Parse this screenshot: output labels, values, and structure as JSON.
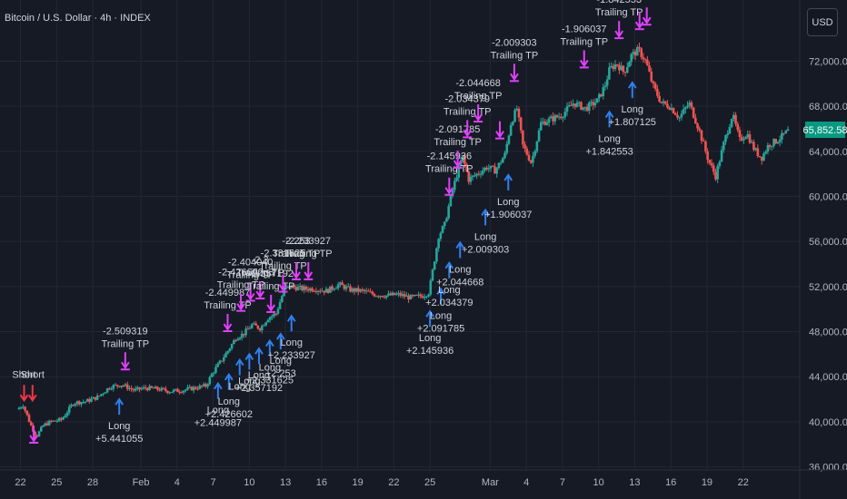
{
  "header": {
    "title": "Bitcoin / U.S. Dollar · 4h · INDEX",
    "currency_label": "USD"
  },
  "colors": {
    "background": "#161a25",
    "grid": "#232734",
    "up_candle": "#26a69a",
    "down_candle": "#ef5350",
    "long_arrow": "#2f80ed",
    "short_arrow": "#f23645",
    "exit_marker": "#e040fb",
    "price_tag": "#089981"
  },
  "chart_data": {
    "type": "candlestick",
    "symbol": "Bitcoin / U.S. Dollar",
    "interval": "4h",
    "grid": true,
    "y_axis": {
      "position": "right",
      "ylim": [
        35000,
        75500
      ],
      "ticks": [
        "36,000.00",
        "40,000.00",
        "44,000.00",
        "48,000.00",
        "52,000.00",
        "56,000.00",
        "60,000.00",
        "64,000.00",
        "68,000.00",
        "72,000.00"
      ]
    },
    "current_price": "65,852.58",
    "x_axis": {
      "ticks": [
        "22",
        "25",
        "28",
        "Feb",
        "4",
        "7",
        "10",
        "13",
        "16",
        "19",
        "22",
        "25",
        "Mar",
        "4",
        "7",
        "10",
        "13",
        "16",
        "19",
        "22"
      ]
    },
    "price_path": [
      {
        "day": 21.8,
        "price": 41100
      },
      {
        "day": 22.3,
        "price": 41500
      },
      {
        "day": 22.9,
        "price": 39800
      },
      {
        "day": 23.4,
        "price": 38700
      },
      {
        "day": 24.0,
        "price": 39700
      },
      {
        "day": 24.6,
        "price": 40000
      },
      {
        "day": 25.5,
        "price": 40200
      },
      {
        "day": 26.5,
        "price": 41700
      },
      {
        "day": 27.5,
        "price": 41800
      },
      {
        "day": 28.5,
        "price": 42200
      },
      {
        "day": 29.5,
        "price": 43100
      },
      {
        "day": 30.5,
        "price": 43300
      },
      {
        "day": 31.5,
        "price": 42800
      },
      {
        "day": 32.5,
        "price": 43000
      },
      {
        "day": 33.5,
        "price": 42900
      },
      {
        "day": 34.5,
        "price": 42700
      },
      {
        "day": 35.5,
        "price": 42800
      },
      {
        "day": 36.5,
        "price": 43000
      },
      {
        "day": 37.5,
        "price": 43200
      },
      {
        "day": 38.0,
        "price": 44300
      },
      {
        "day": 38.6,
        "price": 45200
      },
      {
        "day": 39.3,
        "price": 46300
      },
      {
        "day": 40.0,
        "price": 47500
      },
      {
        "day": 40.6,
        "price": 47800
      },
      {
        "day": 41.3,
        "price": 48600
      },
      {
        "day": 42.0,
        "price": 48300
      },
      {
        "day": 42.6,
        "price": 49200
      },
      {
        "day": 43.3,
        "price": 49600
      },
      {
        "day": 44.0,
        "price": 51800
      },
      {
        "day": 44.6,
        "price": 52000
      },
      {
        "day": 45.5,
        "price": 51800
      },
      {
        "day": 46.5,
        "price": 51800
      },
      {
        "day": 47.5,
        "price": 51600
      },
      {
        "day": 48.5,
        "price": 52200
      },
      {
        "day": 49.5,
        "price": 51700
      },
      {
        "day": 50.5,
        "price": 51600
      },
      {
        "day": 51.5,
        "price": 51300
      },
      {
        "day": 52.5,
        "price": 51200
      },
      {
        "day": 53.5,
        "price": 51300
      },
      {
        "day": 54.5,
        "price": 51000
      },
      {
        "day": 55.5,
        "price": 51200
      },
      {
        "day": 56.0,
        "price": 51500
      },
      {
        "day": 56.4,
        "price": 54000
      },
      {
        "day": 56.8,
        "price": 56500
      },
      {
        "day": 57.3,
        "price": 57500
      },
      {
        "day": 57.8,
        "price": 59900
      },
      {
        "day": 58.3,
        "price": 61900
      },
      {
        "day": 58.8,
        "price": 63500
      },
      {
        "day": 59.3,
        "price": 61500
      },
      {
        "day": 60.0,
        "price": 62000
      },
      {
        "day": 60.8,
        "price": 62600
      },
      {
        "day": 61.5,
        "price": 62300
      },
      {
        "day": 62.3,
        "price": 63700
      },
      {
        "day": 62.8,
        "price": 66500
      },
      {
        "day": 63.3,
        "price": 67800
      },
      {
        "day": 63.8,
        "price": 64500
      },
      {
        "day": 64.5,
        "price": 63000
      },
      {
        "day": 65.3,
        "price": 66500
      },
      {
        "day": 66.0,
        "price": 66800
      },
      {
        "day": 67.0,
        "price": 67200
      },
      {
        "day": 68.0,
        "price": 68300
      },
      {
        "day": 69.0,
        "price": 67800
      },
      {
        "day": 70.0,
        "price": 68500
      },
      {
        "day": 70.6,
        "price": 69800
      },
      {
        "day": 71.0,
        "price": 71300
      },
      {
        "day": 71.6,
        "price": 71800
      },
      {
        "day": 72.2,
        "price": 71000
      },
      {
        "day": 72.8,
        "price": 72500
      },
      {
        "day": 73.4,
        "price": 73000
      },
      {
        "day": 74.0,
        "price": 72000
      },
      {
        "day": 74.6,
        "price": 69800
      },
      {
        "day": 75.3,
        "price": 68300
      },
      {
        "day": 76.0,
        "price": 68000
      },
      {
        "day": 76.8,
        "price": 67000
      },
      {
        "day": 77.6,
        "price": 68300
      },
      {
        "day": 78.4,
        "price": 66000
      },
      {
        "day": 79.2,
        "price": 63200
      },
      {
        "day": 79.8,
        "price": 61800
      },
      {
        "day": 80.5,
        "price": 64800
      },
      {
        "day": 81.2,
        "price": 67300
      },
      {
        "day": 81.8,
        "price": 65000
      },
      {
        "day": 82.4,
        "price": 65600
      },
      {
        "day": 83.0,
        "price": 64200
      },
      {
        "day": 83.6,
        "price": 63400
      },
      {
        "day": 84.2,
        "price": 64600
      },
      {
        "day": 84.8,
        "price": 64900
      },
      {
        "day": 85.4,
        "price": 65400
      },
      {
        "day": 85.8,
        "price": 65800
      }
    ],
    "signals": [
      {
        "type": "short",
        "day": 22.3,
        "price": 41500,
        "label": "Short",
        "line2": ""
      },
      {
        "type": "short",
        "day": 23.0,
        "price": 41500,
        "label": "Short",
        "line2": ""
      },
      {
        "type": "exit",
        "day": 23.1,
        "price": 37900,
        "label": "",
        "line2": ""
      },
      {
        "type": "long",
        "day": 30.2,
        "price": 42400,
        "label": "Long",
        "line2": "+5.441055"
      },
      {
        "type": "exit",
        "day": 30.7,
        "price": 44400,
        "label": "-2.509319",
        "line2": "Trailing TP"
      },
      {
        "type": "long",
        "day": 38.4,
        "price": 43800,
        "label": "Long",
        "line2": "+2.449987"
      },
      {
        "type": "long",
        "day": 39.3,
        "price": 44600,
        "label": "Long",
        "line2": "+2.426602"
      },
      {
        "type": "long",
        "day": 40.2,
        "price": 45900,
        "label": "Long",
        "line2": ""
      },
      {
        "type": "long",
        "day": 41.0,
        "price": 46400,
        "label": "Long",
        "line2": ""
      },
      {
        "type": "long",
        "day": 41.8,
        "price": 46900,
        "label": "Long",
        "line2": "+2.357192"
      },
      {
        "type": "long",
        "day": 42.7,
        "price": 47600,
        "label": "Long",
        "line2": "+2.331625"
      },
      {
        "type": "long",
        "day": 43.6,
        "price": 48200,
        "label": "Long",
        "line2": "+2.253"
      },
      {
        "type": "long",
        "day": 44.5,
        "price": 49800,
        "label": "Long",
        "line2": "+2.233927"
      },
      {
        "type": "exit",
        "day": 39.2,
        "price": 47800,
        "label": "-2.449987",
        "line2": "Trailing TP"
      },
      {
        "type": "exit",
        "day": 40.3,
        "price": 49600,
        "label": "-2.426602",
        "line2": "Trailing TP"
      },
      {
        "type": "exit",
        "day": 41.1,
        "price": 50500,
        "label": "-2.404040",
        "line2": "Trailing TP"
      },
      {
        "type": "exit",
        "day": 41.9,
        "price": 50700,
        "label": "-2.3",
        "line2": "Trailing TP"
      },
      {
        "type": "exit",
        "day": 42.8,
        "price": 49500,
        "label": "-2.357192",
        "line2": "Trailing TP"
      },
      {
        "type": "exit",
        "day": 43.8,
        "price": 51300,
        "label": "-2.331625",
        "line2": "Trailing TP"
      },
      {
        "type": "exit",
        "day": 44.9,
        "price": 52400,
        "label": "-2.253",
        "line2": "Trailing TP"
      },
      {
        "type": "exit",
        "day": 45.9,
        "price": 52400,
        "label": "-2.233927",
        "line2": "Trailing TP"
      },
      {
        "type": "long",
        "day": 56.0,
        "price": 50200,
        "label": "Long",
        "line2": "+2.145936"
      },
      {
        "type": "long",
        "day": 56.9,
        "price": 52200,
        "label": "Long",
        "line2": "+2.091785"
      },
      {
        "type": "long",
        "day": 57.6,
        "price": 54500,
        "label": "Long",
        "line2": "+2.034379"
      },
      {
        "type": "long",
        "day": 58.5,
        "price": 56300,
        "label": "Long",
        "line2": "+2.044668"
      },
      {
        "type": "long",
        "day": 60.6,
        "price": 59200,
        "label": "Long",
        "line2": "+2.009303"
      },
      {
        "type": "long",
        "day": 62.5,
        "price": 62300,
        "label": "Long",
        "line2": "+1.906037"
      },
      {
        "type": "exit",
        "day": 57.6,
        "price": 59900,
        "label": "-2.145936",
        "line2": "Trailing TP"
      },
      {
        "type": "exit",
        "day": 58.3,
        "price": 62300,
        "label": "-2.091785",
        "line2": "Trailing TP"
      },
      {
        "type": "exit",
        "day": 59.1,
        "price": 65000,
        "label": "-2.034379",
        "line2": "Trailing TP"
      },
      {
        "type": "exit",
        "day": 60.0,
        "price": 66400,
        "label": "-2.044668",
        "line2": "Trailing TP"
      },
      {
        "type": "exit",
        "day": 61.8,
        "price": 64900,
        "label": "",
        "line2": ""
      },
      {
        "type": "exit",
        "day": 63.0,
        "price": 70000,
        "label": "-2.009303",
        "line2": "Trailing TP"
      },
      {
        "type": "long",
        "day": 70.9,
        "price": 67900,
        "label": "Long",
        "line2": "+1.842553"
      },
      {
        "type": "long",
        "day": 72.8,
        "price": 70500,
        "label": "Long",
        "line2": "+1.807125"
      },
      {
        "type": "exit",
        "day": 68.8,
        "price": 71200,
        "label": "-1.906037",
        "line2": "Trailing TP"
      },
      {
        "type": "exit",
        "day": 71.7,
        "price": 73800,
        "label": "-1.842553",
        "line2": "Trailing TP"
      },
      {
        "type": "exit",
        "day": 73.4,
        "price": 74600,
        "label": "",
        "line2": ""
      },
      {
        "type": "exit",
        "day": 74.0,
        "price": 75000,
        "label": "",
        "line2": ""
      }
    ]
  }
}
